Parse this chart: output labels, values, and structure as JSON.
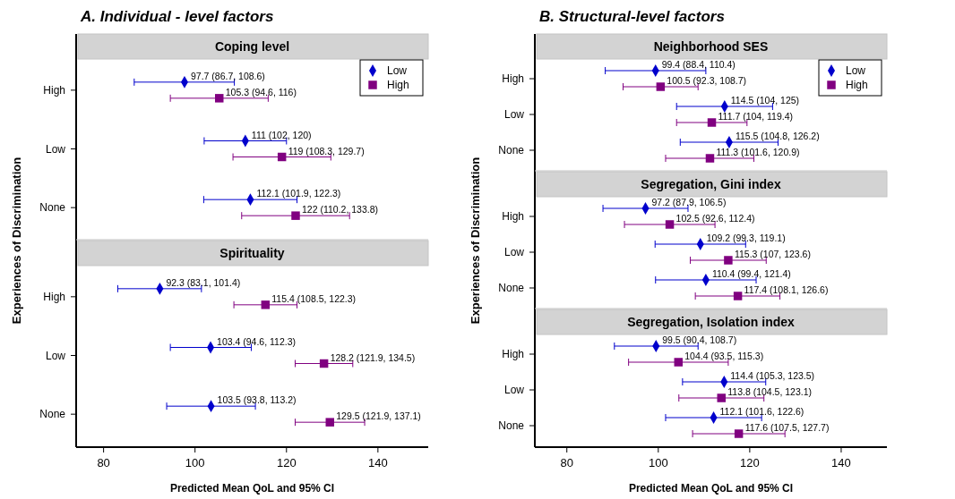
{
  "chart_data": [
    {
      "type": "scatter",
      "title": "A. Individual - level factors",
      "subtitle": "Coping level",
      "ylabel": "Experiences of Discrimination",
      "orientation": "horizontal",
      "categories": [
        "High",
        "Low",
        "None"
      ],
      "xlim": [
        74,
        151
      ],
      "tick_labels": "y",
      "legend": "top right",
      "series": [
        {
          "name": "Low",
          "color": "#0000cc",
          "marker": "diamond",
          "values": [
            97.7,
            111,
            112.1
          ],
          "errors": [
            [
              86.7,
              108.6
            ],
            [
              102,
              120
            ],
            [
              101.9,
              122.3
            ]
          ],
          "value_labels": [
            "97.7 (86.7, 108.6)",
            "111 (102, 120)",
            "112.1 (101.9, 122.3)"
          ]
        },
        {
          "name": "High",
          "color": "#800080",
          "marker": "square",
          "values": [
            105.3,
            119,
            122
          ],
          "errors": [
            [
              94.6,
              116
            ],
            [
              108.3,
              129.7
            ],
            [
              110.2,
              133.8
            ]
          ],
          "value_labels": [
            "105.3 (94.6, 116)",
            "119 (108.3, 129.7)",
            "122 (110.2, 133.8)"
          ]
        }
      ]
    },
    {
      "type": "scatter",
      "subtitle": "Spirituality",
      "xlabel": "Predicted  Mean QoL and 95% CI",
      "orientation": "horizontal",
      "categories": [
        "High",
        "Low",
        "None"
      ],
      "xlim": [
        74,
        151
      ],
      "xticks": [
        80,
        100,
        120,
        140
      ],
      "series": [
        {
          "color": "#0000cc",
          "marker": "diamond",
          "values": [
            92.3,
            103.4,
            103.5
          ],
          "errors": [
            [
              83.1,
              101.4
            ],
            [
              94.6,
              112.3
            ],
            [
              93.8,
              113.2
            ]
          ],
          "value_labels": [
            "92.3 (83.1, 101.4)",
            "103.4 (94.6, 112.3)",
            "103.5 (93.8, 113.2)"
          ]
        },
        {
          "color": "#800080",
          "marker": "square",
          "values": [
            115.4,
            128.2,
            129.5
          ],
          "errors": [
            [
              108.5,
              122.3
            ],
            [
              121.9,
              134.5
            ],
            [
              121.9,
              137.1
            ]
          ],
          "value_labels": [
            "115.4 (108.5, 122.3)",
            "128.2 (121.9, 134.5)",
            "129.5 (121.9, 137.1)"
          ]
        }
      ]
    },
    {
      "type": "scatter",
      "title": "B. Structural-level factors",
      "subtitle": "Neighborhood SES",
      "ylabel": "Experiences of Discrimination",
      "orientation": "horizontal",
      "categories": [
        "High",
        "Low",
        "None"
      ],
      "xlim": [
        73,
        150
      ],
      "tick_labels": "y",
      "legend": "top right",
      "series": [
        {
          "name": "Low",
          "color": "#0000cc",
          "marker": "diamond",
          "values": [
            99.4,
            114.5,
            115.5
          ],
          "errors": [
            [
              88.4,
              110.4
            ],
            [
              104,
              125
            ],
            [
              104.8,
              126.2
            ]
          ],
          "value_labels": [
            "99.4 (88.4, 110.4)",
            "114.5 (104, 125)",
            "115.5 (104.8, 126.2)"
          ]
        },
        {
          "name": "High",
          "color": "#800080",
          "marker": "square",
          "values": [
            100.5,
            111.7,
            111.3
          ],
          "errors": [
            [
              92.3,
              108.7
            ],
            [
              104,
              119.4
            ],
            [
              101.6,
              120.9
            ]
          ],
          "value_labels": [
            "100.5 (92.3, 108.7)",
            "111.7 (104, 119.4)",
            "111.3 (101.6, 120.9)"
          ]
        }
      ]
    },
    {
      "type": "scatter",
      "subtitle": "Segregation, Gini index",
      "orientation": "horizontal",
      "categories": [
        "High",
        "Low",
        "None"
      ],
      "xlim": [
        73,
        150
      ],
      "tick_labels": "y",
      "series": [
        {
          "color": "#0000cc",
          "marker": "diamond",
          "values": [
            97.2,
            109.2,
            110.4
          ],
          "errors": [
            [
              87.9,
              106.5
            ],
            [
              99.3,
              119.1
            ],
            [
              99.4,
              121.4
            ]
          ],
          "value_labels": [
            "97.2 (87.9, 106.5)",
            "109.2 (99.3, 119.1)",
            "110.4 (99.4, 121.4)"
          ]
        },
        {
          "color": "#800080",
          "marker": "square",
          "values": [
            102.5,
            115.3,
            117.4
          ],
          "errors": [
            [
              92.6,
              112.4
            ],
            [
              107,
              123.6
            ],
            [
              108.1,
              126.6
            ]
          ],
          "value_labels": [
            "102.5 (92.6, 112.4)",
            "115.3 (107, 123.6)",
            "117.4 (108.1, 126.6)"
          ]
        }
      ]
    },
    {
      "type": "scatter",
      "subtitle": "Segregation, Isolation index",
      "xlabel": "Predicted  Mean QoL and 95% CI",
      "orientation": "horizontal",
      "categories": [
        "High",
        "Low",
        "None"
      ],
      "xlim": [
        73,
        150
      ],
      "xticks": [
        80,
        100,
        120,
        140
      ],
      "series": [
        {
          "color": "#0000cc",
          "marker": "diamond",
          "values": [
            99.5,
            114.4,
            112.1
          ],
          "errors": [
            [
              90.4,
              108.7
            ],
            [
              105.3,
              123.5
            ],
            [
              101.6,
              122.6
            ]
          ],
          "value_labels": [
            "99.5 (90.4, 108.7)",
            "114.4 (105.3, 123.5)",
            "112.1 (101.6, 122.6)"
          ]
        },
        {
          "color": "#800080",
          "marker": "square",
          "values": [
            104.4,
            113.8,
            117.6
          ],
          "errors": [
            [
              93.5,
              115.3
            ],
            [
              104.5,
              123.1
            ],
            [
              107.5,
              127.7
            ]
          ],
          "value_labels": [
            "104.4 (93.5, 115.3)",
            "113.8 (104.5, 123.1)",
            "117.6 (107.5, 127.7)"
          ]
        }
      ]
    }
  ]
}
